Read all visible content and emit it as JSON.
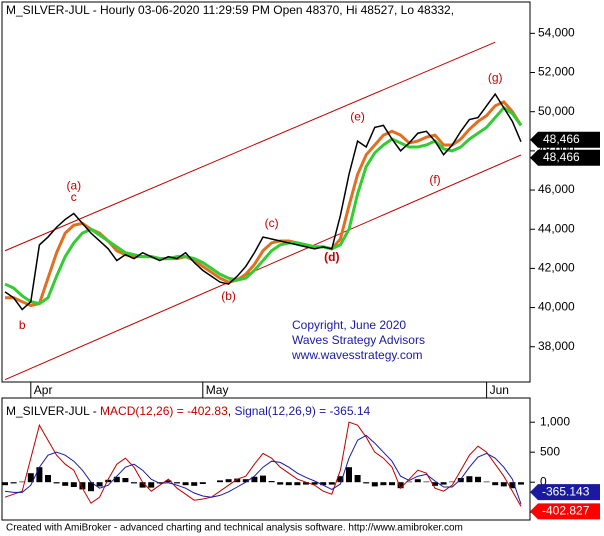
{
  "chart_data": [
    {
      "type": "line",
      "title": "M_SILVER-JUL - Hourly 03-06-2020 11:29:59 PM Open 48370, Hi 48527, Lo 48332,",
      "xlim": [
        0,
        60
      ],
      "xticks": [
        {
          "value": 3,
          "label": "Apr"
        },
        {
          "value": 23,
          "label": "May"
        },
        {
          "value": 56,
          "label": "Jun"
        }
      ],
      "ylim": [
        36200,
        55600
      ],
      "yticks": [
        {
          "value": 38000,
          "label": "38,000"
        },
        {
          "value": 40000,
          "label": "40,000"
        },
        {
          "value": 42000,
          "label": "42,000"
        },
        {
          "value": 44000,
          "label": "44,000"
        },
        {
          "value": 46000,
          "label": "46,000"
        },
        {
          "value": 48000,
          "label": "48,000"
        },
        {
          "value": 50000,
          "label": "50,000"
        },
        {
          "value": 52000,
          "label": "52,000"
        },
        {
          "value": 54000,
          "label": "54,000"
        }
      ],
      "series": [
        {
          "color": "#e07020",
          "width": 3,
          "values": [
            40500,
            40500,
            40300,
            40100,
            40200,
            41500,
            42800,
            43800,
            44200,
            44300,
            44000,
            43800,
            43400,
            42900,
            42700,
            42600,
            42600,
            42600,
            42500,
            42500,
            42500,
            42600,
            42400,
            42100,
            41800,
            41500,
            41300,
            41400,
            41700,
            42200,
            42900,
            43300,
            43400,
            43400,
            43300,
            43200,
            43100,
            43100,
            43000,
            43500,
            45200,
            46800,
            47800,
            48300,
            48800,
            49000,
            48800,
            48400,
            48500,
            48700,
            48800,
            48300,
            48300,
            48600,
            49100,
            49500,
            49800,
            50300,
            50500,
            50000,
            49300
          ]
        },
        {
          "color": "#33cc33",
          "width": 3,
          "values": [
            41200,
            41000,
            40600,
            40300,
            40200,
            40500,
            41600,
            42600,
            43300,
            43800,
            44000,
            43700,
            43400,
            43100,
            42800,
            42700,
            42600,
            42600,
            42500,
            42500,
            42600,
            42600,
            42500,
            42300,
            42000,
            41700,
            41500,
            41400,
            41500,
            41900,
            42400,
            42900,
            43200,
            43300,
            43300,
            43200,
            43100,
            43100,
            43000,
            43200,
            44000,
            45800,
            47200,
            47900,
            48300,
            48600,
            48400,
            48200,
            48200,
            48300,
            48500,
            48100,
            48000,
            48200,
            48600,
            48900,
            49200,
            49700,
            50200,
            49900,
            49300
          ]
        },
        {
          "color": "#000000",
          "width": 1.5,
          "values": [
            40800,
            40500,
            39900,
            40300,
            43200,
            43600,
            44100,
            44500,
            44800,
            44300,
            43800,
            43400,
            43000,
            42400,
            42700,
            42500,
            42800,
            42600,
            42400,
            42600,
            42500,
            42800,
            42300,
            41900,
            41600,
            41300,
            41200,
            41600,
            42100,
            42800,
            43600,
            43500,
            43400,
            43300,
            43200,
            43100,
            43000,
            43100,
            43000,
            44700,
            46800,
            48500,
            48200,
            49200,
            49300,
            48600,
            48000,
            48400,
            48900,
            49000,
            48500,
            47800,
            48300,
            49000,
            49600,
            49700,
            50300,
            50900,
            50200,
            49500,
            48466
          ]
        }
      ],
      "channel_color": "#c00000",
      "channels": [
        {
          "x": [
            0,
            57
          ],
          "y": [
            42900,
            53550
          ]
        },
        {
          "x": [
            0,
            60
          ],
          "y": [
            36320,
            47790
          ]
        }
      ],
      "annotations": [
        {
          "text": "(a)",
          "x": 8,
          "y": 46200
        },
        {
          "text": "c",
          "x": 8,
          "y": 45600
        },
        {
          "text": "b",
          "x": 2,
          "y": 39070
        },
        {
          "text": "(b)",
          "x": 26,
          "y": 40550
        },
        {
          "text": "(c)",
          "x": 31,
          "y": 44270
        },
        {
          "text": "(d)",
          "x": 38,
          "y": 42530
        },
        {
          "text": "(e)",
          "x": 41,
          "y": 49720
        },
        {
          "text": "(f)",
          "x": 50,
          "y": 46500
        },
        {
          "text": "(g)",
          "x": 57,
          "y": 51700
        }
      ],
      "annotation_color": "#c00000",
      "badges": [
        {
          "value": 48466,
          "label": "48,466"
        },
        {
          "value": 48466,
          "label": "48,466"
        }
      ],
      "copyright": [
        "Copyright, June 2020",
        "Waves Strategy Advisors",
        "www.wavesstrategy.com"
      ],
      "copyright_color": "#1a1aa0"
    },
    {
      "type": "macd",
      "title_parts": [
        {
          "text": "M_SILVER-JUL - ",
          "color": "#000000"
        },
        {
          "text": "MACD(12,26) = -402.83",
          "color": "#c00000"
        },
        {
          "text": ", ",
          "color": "#000000"
        },
        {
          "text": "Signal(12,26,9) = -365.14",
          "color": "#1a1aa0"
        }
      ],
      "xlim": [
        0,
        60
      ],
      "ylim": [
        -630,
        1370
      ],
      "yticks": [
        {
          "value": 1000,
          "label": "1,000"
        },
        500,
        0,
        -500
      ],
      "series": [
        {
          "color": "#c00000",
          "values": [
            -250,
            -200,
            -150,
            400,
            950,
            700,
            450,
            300,
            200,
            -100,
            -350,
            -250,
            50,
            300,
            400,
            250,
            0,
            -150,
            -50,
            50,
            -100,
            -200,
            -300,
            -280,
            -250,
            -150,
            -50,
            50,
            100,
            300,
            480,
            400,
            250,
            150,
            50,
            0,
            -50,
            -150,
            -200,
            200,
            1000,
            950,
            750,
            500,
            400,
            250,
            -100,
            50,
            200,
            150,
            -100,
            -150,
            -50,
            200,
            450,
            600,
            500,
            300,
            100,
            -150,
            -402.83
          ]
        },
        {
          "color": "#1a1aa0",
          "values": [
            -150,
            -170,
            -170,
            -50,
            250,
            450,
            500,
            450,
            350,
            200,
            0,
            -100,
            -50,
            100,
            250,
            300,
            200,
            50,
            -20,
            -10,
            -50,
            -100,
            -180,
            -230,
            -250,
            -220,
            -160,
            -80,
            0,
            100,
            250,
            350,
            330,
            250,
            150,
            80,
            20,
            -50,
            -120,
            -30,
            400,
            700,
            780,
            650,
            500,
            350,
            100,
            30,
            100,
            130,
            20,
            -80,
            -80,
            50,
            250,
            420,
            480,
            400,
            250,
            50,
            -365.14
          ]
        }
      ],
      "histogram": [
        -50,
        -20,
        10,
        150,
        250,
        120,
        -20,
        -60,
        -80,
        -120,
        -150,
        -70,
        40,
        90,
        70,
        -20,
        -90,
        -90,
        -20,
        30,
        -20,
        -50,
        -60,
        -30,
        0,
        30,
        50,
        60,
        50,
        90,
        110,
        20,
        -40,
        -50,
        -50,
        -40,
        -40,
        -50,
        -40,
        100,
        250,
        120,
        -20,
        -70,
        -50,
        -50,
        -100,
        10,
        50,
        10,
        -60,
        -40,
        10,
        70,
        100,
        90,
        10,
        -50,
        -70,
        -100,
        -40
      ],
      "histogram_color": "#000000",
      "badges": [
        {
          "value": -365.143,
          "color": "#1a1aa0"
        },
        {
          "value": -402.827,
          "color": "#ff0000"
        }
      ]
    }
  ],
  "footer": "Created with AmiBroker - advanced charting and technical analysis software.  http://www.amibroker.com"
}
